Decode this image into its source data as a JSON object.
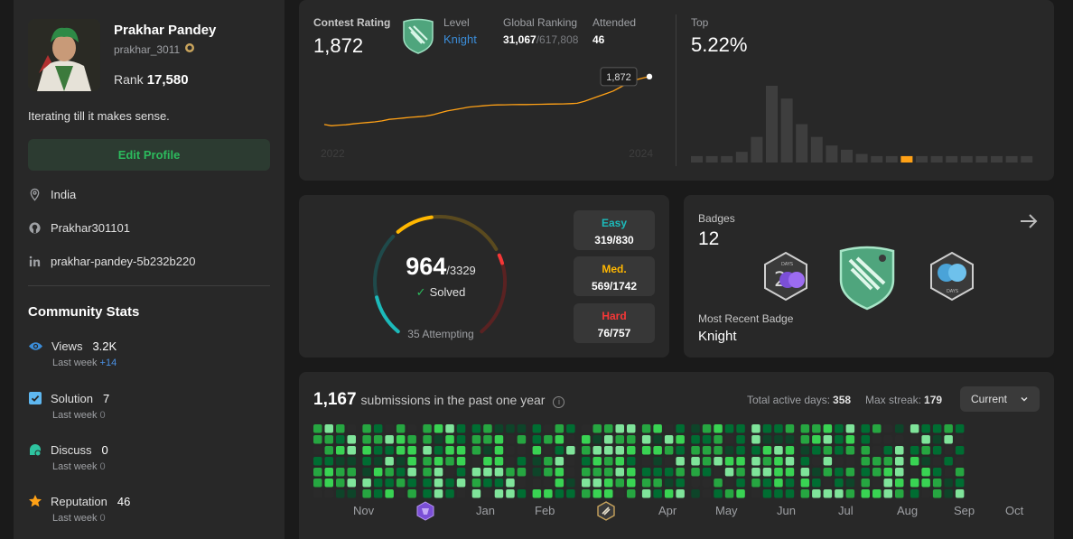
{
  "profile": {
    "name": "Prakhar Pandey",
    "username": "prakhar_3011",
    "rank_label": "Rank",
    "rank": "17,580",
    "bio": "Iterating till it makes sense.",
    "edit_label": "Edit Profile",
    "location": "India",
    "github": "Prakhar301101",
    "linkedin": "prakhar-pandey-5b232b220"
  },
  "community": {
    "title": "Community Stats",
    "last_week_label": "Last week",
    "items": [
      {
        "label": "Views",
        "value": "3.2K",
        "delta": "+14",
        "icon": "eye-icon",
        "color": "#3b8dd9"
      },
      {
        "label": "Solution",
        "value": "7",
        "delta": "0",
        "icon": "solution-check-icon",
        "color": "#5eb7f0"
      },
      {
        "label": "Discuss",
        "value": "0",
        "delta": "0",
        "icon": "discuss-icon",
        "color": "#2ec4a0"
      },
      {
        "label": "Reputation",
        "value": "46",
        "delta": "0",
        "icon": "star-icon",
        "color": "#ffa116"
      }
    ]
  },
  "contest": {
    "rating_label": "Contest Rating",
    "rating": "1,872",
    "level_label": "Level",
    "level": "Knight",
    "global_label": "Global Ranking",
    "global_rank": "31,067",
    "global_total": "/617,808",
    "attended_label": "Attended",
    "attended": "46",
    "top_label": "Top",
    "top": "5.22%",
    "tooltip": "1,872"
  },
  "chart_data": [
    {
      "type": "line",
      "title": "",
      "x_start_label": "2022",
      "x_end_label": "2024",
      "x": [
        0,
        1,
        2,
        3,
        4,
        5,
        6,
        7,
        8,
        9,
        10,
        11,
        12,
        13,
        14,
        15,
        16,
        17,
        18,
        19,
        20,
        21,
        22,
        23,
        24,
        25,
        26,
        27,
        28,
        29,
        30,
        31,
        32,
        33,
        34,
        35,
        36,
        37,
        38,
        39,
        40,
        41,
        42,
        43,
        44,
        45
      ],
      "values": [
        1500,
        1490,
        1495,
        1498,
        1505,
        1510,
        1515,
        1520,
        1528,
        1540,
        1545,
        1550,
        1556,
        1560,
        1565,
        1575,
        1590,
        1605,
        1615,
        1625,
        1635,
        1640,
        1645,
        1650,
        1652,
        1653,
        1654,
        1655,
        1655,
        1656,
        1657,
        1658,
        1659,
        1660,
        1662,
        1665,
        1680,
        1700,
        1720,
        1740,
        1760,
        1790,
        1820,
        1845,
        1860,
        1872
      ],
      "ylim": [
        1450,
        1920
      ],
      "color": "#ffa116"
    },
    {
      "type": "bar",
      "title": "",
      "values": [
        3,
        3,
        3,
        5,
        12,
        36,
        30,
        18,
        12,
        8,
        6,
        4,
        3,
        3,
        3,
        3,
        3,
        3,
        3,
        3,
        3,
        3,
        3
      ],
      "highlight_index": 14,
      "color": "#3e3e3e",
      "highlight_color": "#ffa116"
    }
  ],
  "solved": {
    "count": "964",
    "total": "/3329",
    "solved_label": "Solved",
    "attempting": "35 Attempting",
    "easy": {
      "label": "Easy",
      "value": "319/830",
      "color": "#1cbaba",
      "solved": 319,
      "total": 830
    },
    "medium": {
      "label": "Med.",
      "value": "569/1742",
      "color": "#ffb700",
      "solved": 569,
      "total": 1742
    },
    "hard": {
      "label": "Hard",
      "value": "76/757",
      "color": "#f63737",
      "solved": 76,
      "total": 757
    }
  },
  "badges": {
    "label": "Badges",
    "count": "12",
    "recent_label": "Most Recent Badge",
    "recent": "Knight"
  },
  "submissions": {
    "count": "1,167",
    "label": "submissions in the past one year",
    "active_label": "Total active days:",
    "active": "358",
    "streak_label": "Max streak:",
    "streak": "179",
    "select": "Current",
    "months": [
      "Nov",
      "Jan",
      "Feb",
      "Apr",
      "May",
      "Jun",
      "Jul",
      "Aug",
      "Sep",
      "Oct"
    ]
  }
}
